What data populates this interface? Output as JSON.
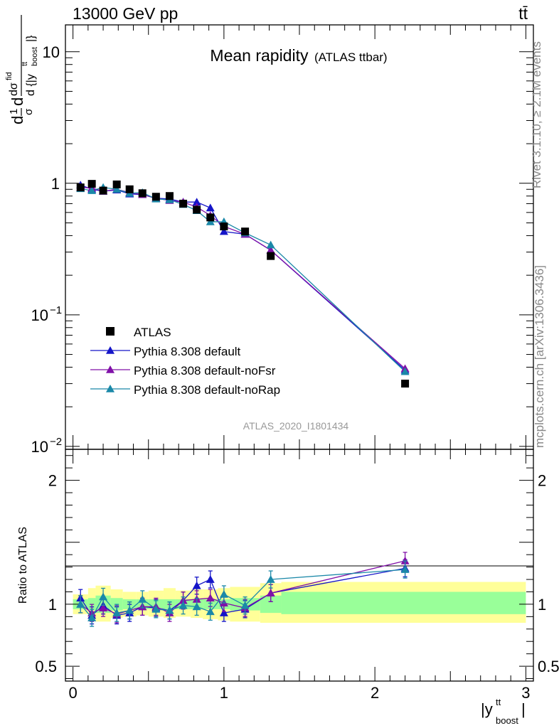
{
  "header": {
    "left": "13000 GeV pp",
    "right": "tt̄"
  },
  "title": {
    "main": "Mean rapidity",
    "sub": "(ATLAS ttbar)"
  },
  "analysis_label": "ATLAS_2020_I1801434",
  "side_labels": {
    "rivet": "Rivet 3.1.10, ≥ 2.1M events",
    "mcplots": "mcplots.cern.ch [arXiv:1306.3436]"
  },
  "colors": {
    "data": "#000000",
    "default": "#1515c8",
    "noFsr": "#8010a8",
    "noRap": "#1a88a8",
    "band_inner": "#99ff99",
    "band_outer": "#ffff99"
  },
  "chart_data": [
    {
      "type": "scatter",
      "panel": "main",
      "ylabel": "d 1/σ dσ^fid / d {|y^tt_boost|}",
      "yscale": "log",
      "ylim": [
        0.0095,
        16
      ],
      "xlim": [
        -0.05,
        3.05
      ],
      "y_tick_labels": [
        "10^-2",
        "10^-1",
        "1",
        "10"
      ],
      "legend_position": "lower-left",
      "x": [
        0.05,
        0.125,
        0.2,
        0.29,
        0.375,
        0.46,
        0.55,
        0.64,
        0.73,
        0.82,
        0.91,
        1.0,
        1.14,
        1.31,
        2.2
      ],
      "series": [
        {
          "name": "ATLAS",
          "marker": "square",
          "values": [
            0.93,
            0.99,
            0.88,
            0.98,
            0.9,
            0.84,
            0.79,
            0.8,
            0.7,
            0.63,
            0.55,
            0.47,
            0.43,
            0.28,
            0.03
          ]
        },
        {
          "name": "Pythia 8.308 default",
          "marker": "triangle",
          "values": [
            0.97,
            0.9,
            0.87,
            0.89,
            0.83,
            0.82,
            0.77,
            0.76,
            0.72,
            0.72,
            0.65,
            0.43,
            0.41,
            0.31,
            0.038
          ]
        },
        {
          "name": "Pythia 8.308 default-noFsr",
          "marker": "triangle",
          "values": [
            0.93,
            0.92,
            0.87,
            0.9,
            0.85,
            0.82,
            0.77,
            0.74,
            0.72,
            0.66,
            0.57,
            0.47,
            0.41,
            0.31,
            0.039
          ]
        },
        {
          "name": "Pythia 8.308 default-noRap",
          "marker": "triangle",
          "values": [
            0.91,
            0.88,
            0.93,
            0.9,
            0.84,
            0.85,
            0.76,
            0.75,
            0.69,
            0.62,
            0.51,
            0.51,
            0.42,
            0.34,
            0.037
          ]
        }
      ]
    },
    {
      "type": "line",
      "panel": "ratio",
      "ylabel": "Ratio to ATLAS",
      "xlabel": "|y^tt_boost|",
      "ylim": [
        0.38,
        2.25
      ],
      "xlim": [
        -0.05,
        3.05
      ],
      "y_tick_labels": [
        "0.5",
        "1",
        "2"
      ],
      "x_tick_labels": [
        "0",
        "1",
        "2",
        "3"
      ],
      "x": [
        0.05,
        0.125,
        0.2,
        0.29,
        0.375,
        0.46,
        0.55,
        0.64,
        0.73,
        0.82,
        0.91,
        1.0,
        1.14,
        1.31,
        2.2
      ],
      "series": [
        {
          "name": "Pythia 8.308 default",
          "values": [
            1.05,
            0.91,
            0.99,
            0.91,
            0.93,
            0.98,
            0.97,
            0.95,
            1.03,
            1.15,
            1.2,
            0.93,
            0.96,
            1.09,
            1.29
          ]
        },
        {
          "name": "Pythia 8.308 default-noFsr",
          "values": [
            1.0,
            0.93,
            0.97,
            0.92,
            0.95,
            0.98,
            0.98,
            0.93,
            1.03,
            1.04,
            1.05,
            1.01,
            0.97,
            1.09,
            1.35
          ]
        },
        {
          "name": "Pythia 8.308 default-noRap",
          "values": [
            1.0,
            0.89,
            1.06,
            0.93,
            0.95,
            1.04,
            0.96,
            0.95,
            0.99,
            0.98,
            0.94,
            1.08,
            0.99,
            1.2,
            1.28
          ]
        }
      ],
      "bands": {
        "edges": [
          0,
          0.1,
          0.15,
          0.25,
          0.33,
          0.42,
          0.5,
          0.6,
          0.68,
          0.78,
          0.86,
          0.96,
          1.04,
          1.24,
          1.38,
          3.0
        ],
        "inner": [
          [
            0.96,
            1.04
          ],
          [
            0.95,
            1.05
          ],
          [
            0.93,
            1.07
          ],
          [
            0.95,
            1.05
          ],
          [
            0.96,
            1.04
          ],
          [
            0.96,
            1.04
          ],
          [
            0.96,
            1.04
          ],
          [
            0.96,
            1.04
          ],
          [
            0.96,
            1.04
          ],
          [
            0.96,
            1.04
          ],
          [
            0.96,
            1.04
          ],
          [
            0.96,
            1.04
          ],
          [
            0.95,
            1.05
          ],
          [
            0.93,
            1.07
          ],
          [
            0.92,
            1.1
          ]
        ],
        "outer": [
          [
            0.92,
            1.08
          ],
          [
            0.88,
            1.13
          ],
          [
            0.86,
            1.15
          ],
          [
            0.89,
            1.12
          ],
          [
            0.9,
            1.1
          ],
          [
            0.91,
            1.1
          ],
          [
            0.9,
            1.11
          ],
          [
            0.89,
            1.13
          ],
          [
            0.9,
            1.11
          ],
          [
            0.89,
            1.12
          ],
          [
            0.88,
            1.12
          ],
          [
            0.87,
            1.13
          ],
          [
            0.86,
            1.14
          ],
          [
            0.85,
            1.17
          ],
          [
            0.85,
            1.18
          ]
        ]
      }
    }
  ]
}
